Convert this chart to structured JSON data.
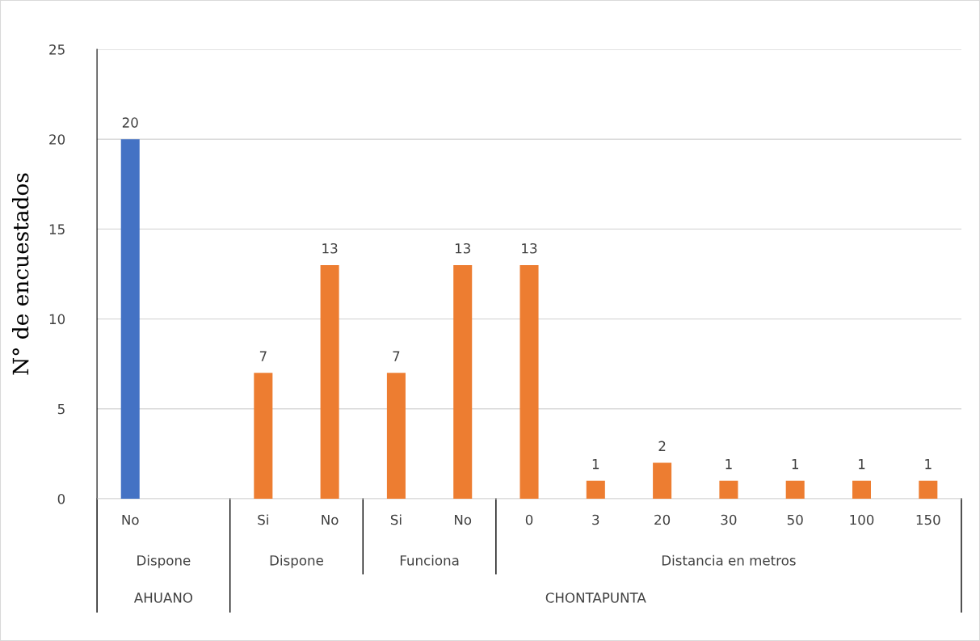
{
  "chart_data": {
    "type": "bar",
    "ylabel": "N° de encuestados",
    "categories": [
      "No",
      null,
      "Si",
      "No",
      "Si",
      "No",
      "0",
      "3",
      "20",
      "30",
      "50",
      "100",
      "150"
    ],
    "values": [
      20,
      null,
      7,
      13,
      7,
      13,
      13,
      1,
      2,
      1,
      1,
      1,
      1
    ],
    "colors": [
      "#4472c4",
      "#4472c4",
      "#ed7d31",
      "#ed7d31",
      "#ed7d31",
      "#ed7d31",
      "#ed7d31",
      "#ed7d31",
      "#ed7d31",
      "#ed7d31",
      "#ed7d31",
      "#ed7d31",
      "#ed7d31"
    ],
    "ylim": [
      0,
      25
    ],
    "yticks": [
      0,
      5,
      10,
      15,
      20,
      25
    ],
    "grid": "y",
    "data_labels": true,
    "legend": false,
    "annotations": [
      "Dispone",
      "Dispone",
      "Funciona",
      "Distancia en metros",
      "AHUANO",
      "CHONTAPUNTA"
    ]
  }
}
